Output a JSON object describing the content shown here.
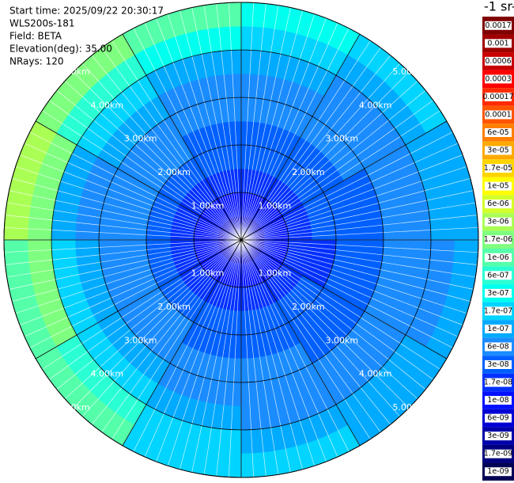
{
  "chart_data": {
    "type": "ppi",
    "info": [
      "Start time: 2025/09/22 20:30:17",
      "WLS200s-181",
      "Field: BETA",
      "Elevation(deg): 35.00",
      "NRays: 120"
    ],
    "colorbar_title": "-1 sr-",
    "colorbar": {
      "ticks": [
        {
          "value": 0.0017,
          "label": "0.0017"
        },
        {
          "value": 0.001,
          "label": "0.001"
        },
        {
          "value": 0.0006,
          "label": "0.0006"
        },
        {
          "value": 0.0003,
          "label": "0.0003"
        },
        {
          "value": 0.00017,
          "label": "0.00017"
        },
        {
          "value": 0.0001,
          "label": "0.0001"
        },
        {
          "value": 6e-05,
          "label": "6e-05"
        },
        {
          "value": 3e-05,
          "label": "3e-05"
        },
        {
          "value": 1.7e-05,
          "label": "1.7e-05"
        },
        {
          "value": 1e-05,
          "label": "1e-05"
        },
        {
          "value": 6e-06,
          "label": "6e-06"
        },
        {
          "value": 3e-06,
          "label": "3e-06"
        },
        {
          "value": 1.7e-06,
          "label": "1.7e-06"
        },
        {
          "value": 1e-06,
          "label": "1e-06"
        },
        {
          "value": 6e-07,
          "label": "6e-07"
        },
        {
          "value": 3e-07,
          "label": "3e-07"
        },
        {
          "value": 1.7e-07,
          "label": "1.7e-07"
        },
        {
          "value": 1e-07,
          "label": "1e-07"
        },
        {
          "value": 6e-08,
          "label": "6e-08"
        },
        {
          "value": 3e-08,
          "label": "3e-08"
        },
        {
          "value": 1.7e-08,
          "label": "1.7e-08"
        },
        {
          "value": 1e-08,
          "label": "1e-08"
        },
        {
          "value": 6e-09,
          "label": "6e-09"
        },
        {
          "value": 3e-09,
          "label": "3e-09"
        },
        {
          "value": 1.7e-09,
          "label": "1.7e-09"
        },
        {
          "value": 1e-09,
          "label": "1e-09"
        }
      ],
      "colors": [
        "#7f0000",
        "#a00000",
        "#c80000",
        "#ff0000",
        "#ff2a00",
        "#ff5500",
        "#ff7f00",
        "#ffaa00",
        "#ffd400",
        "#ffff00",
        "#d4ff2a",
        "#aaff55",
        "#7fff7f",
        "#55ffaa",
        "#2affd4",
        "#00ffee",
        "#00d4ff",
        "#00aaff",
        "#1a8cff",
        "#0060ff",
        "#0030ff",
        "#0010ff",
        "#0000d4",
        "#0000aa",
        "#00007f",
        "#000055"
      ]
    },
    "rlim": [
      0,
      5
    ],
    "rticks": [
      {
        "value": 1,
        "label": "1.00km"
      },
      {
        "value": 2,
        "label": "2.00km"
      },
      {
        "value": 3,
        "label": "3.00km"
      },
      {
        "value": 4,
        "label": "4.00km"
      },
      {
        "value": 5,
        "label": "5.00km"
      }
    ],
    "azimuths": [
      0,
      30,
      60,
      90,
      120,
      150,
      180,
      210,
      240,
      270,
      300,
      330,
      360
    ],
    "ranges": [
      0,
      0.5,
      1,
      1.5,
      2,
      2.5,
      3,
      3.5,
      4,
      4.5,
      5
    ],
    "values": [
      [
        6e-09,
        1e-08,
        1.7e-08,
        3e-08,
        3e-08,
        6e-08,
        6e-08,
        1e-07,
        1.7e-07,
        3e-07
      ],
      [
        6e-09,
        1e-08,
        1.7e-08,
        3e-08,
        3e-08,
        6e-08,
        6e-08,
        6e-08,
        1e-07,
        1.7e-07
      ],
      [
        6e-09,
        1e-08,
        1.7e-08,
        3e-08,
        3e-08,
        3e-08,
        6e-08,
        6e-08,
        1e-07,
        1e-07
      ],
      [
        6e-09,
        1e-08,
        1.7e-08,
        1.7e-08,
        3e-08,
        3e-08,
        6e-08,
        6e-08,
        6e-08,
        1e-07
      ],
      [
        6e-09,
        1e-08,
        1.7e-08,
        3e-08,
        3e-08,
        3e-08,
        6e-08,
        6e-08,
        1e-07,
        1e-07
      ],
      [
        6e-09,
        1e-08,
        1.7e-08,
        3e-08,
        3e-08,
        6e-08,
        6e-08,
        6e-08,
        1e-07,
        1.7e-07
      ],
      [
        6e-09,
        1e-08,
        1.7e-08,
        3e-08,
        3e-08,
        6e-08,
        6e-08,
        1e-07,
        1.7e-07,
        1.7e-07
      ],
      [
        6e-09,
        1e-08,
        1.7e-08,
        3e-08,
        6e-08,
        6e-08,
        1e-07,
        1.7e-07,
        6e-07,
        1e-06
      ],
      [
        6e-09,
        1e-08,
        1.7e-08,
        3e-08,
        6e-08,
        6e-08,
        1e-07,
        1.7e-07,
        1.7e-06,
        1e-06
      ],
      [
        6e-09,
        1e-08,
        1.7e-08,
        3e-08,
        6e-08,
        6e-08,
        6e-08,
        1e-07,
        1.7e-06,
        3e-06
      ],
      [
        6e-09,
        1e-08,
        1.7e-08,
        3e-08,
        6e-08,
        6e-08,
        1e-07,
        1.7e-07,
        6e-07,
        1.7e-06
      ],
      [
        6e-09,
        1e-08,
        1.7e-08,
        3e-08,
        3e-08,
        6e-08,
        6e-08,
        1e-07,
        3e-07,
        1e-06
      ]
    ]
  }
}
